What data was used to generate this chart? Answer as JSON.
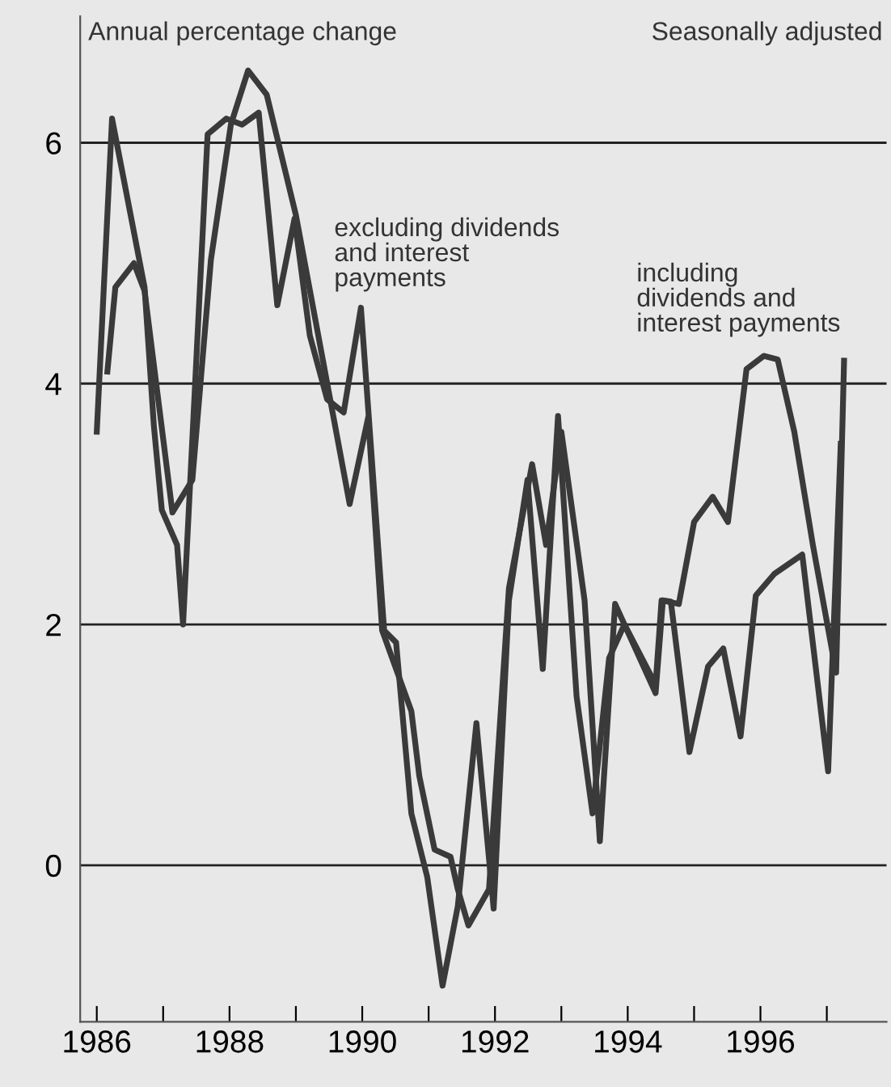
{
  "chart_data": {
    "type": "line",
    "ylabel": "Annual percentage change",
    "subtitle": "Seasonally adjusted",
    "xlim": [
      1985.75,
      1997.9
    ],
    "ylim": [
      -1.3,
      7.05
    ],
    "xticks": [
      1986,
      {
        "value": 1987,
        "label": null
      },
      1988,
      {
        "value": 1989,
        "label": null
      },
      1990,
      {
        "value": 1991,
        "label": null
      },
      1992,
      {
        "value": 1993,
        "label": null
      },
      1994,
      {
        "value": 1995,
        "label": null
      },
      1996,
      {
        "value": 1997,
        "label": null
      }
    ],
    "yticks": [
      0,
      2,
      4,
      6
    ],
    "grid": "y",
    "legend": false,
    "line_style": "solid",
    "marker": "none",
    "series": [
      {
        "name": "excluding dividends\nand interest\npayments",
        "color": "#3a3a3a",
        "x": [
          1986.0,
          1986.23,
          1986.72,
          1986.86,
          1986.98,
          1987.21,
          1987.3,
          1987.67,
          1987.95,
          1988.19,
          1988.44,
          1988.72,
          1988.98,
          1989.21,
          1989.47,
          1989.72,
          1989.98,
          1990.33,
          1990.51,
          1990.74,
          1990.98,
          1991.21,
          1991.44,
          1991.72,
          1991.98,
          1992.21,
          1992.49,
          1992.72,
          1992.95,
          1993.23,
          1993.47,
          1993.72,
          1993.95,
          1994.42,
          1994.53,
          1994.65,
          1994.93,
          1995.21,
          1995.44,
          1995.7,
          1995.93,
          1996.21,
          1996.63,
          1997.02,
          1997.21
        ],
        "values": [
          3.6,
          6.2,
          4.8,
          3.65,
          2.95,
          2.66,
          2.0,
          6.07,
          6.2,
          6.15,
          6.25,
          4.65,
          5.37,
          4.4,
          3.87,
          3.76,
          4.63,
          1.95,
          1.85,
          0.43,
          -0.1,
          -1.0,
          -0.34,
          1.18,
          -0.36,
          2.2,
          3.2,
          1.63,
          3.73,
          1.4,
          0.43,
          1.72,
          2.0,
          1.43,
          2.2,
          2.19,
          0.94,
          1.65,
          1.8,
          1.07,
          2.24,
          2.42,
          2.58,
          0.78,
          3.5
        ]
      },
      {
        "name": "including\ndividends and\ninterest payments",
        "color": "#3a3a3a",
        "x": [
          1986.16,
          1986.28,
          1986.56,
          1986.72,
          1987.14,
          1987.44,
          1987.72,
          1988.02,
          1988.28,
          1988.56,
          1989.0,
          1989.81,
          1990.09,
          1990.3,
          1990.74,
          1990.86,
          1991.09,
          1991.33,
          1991.44,
          1991.6,
          1991.91,
          1992.21,
          1992.56,
          1992.77,
          1993.0,
          1993.35,
          1993.58,
          1993.81,
          1993.95,
          1994.42,
          1994.51,
          1994.77,
          1995.0,
          1995.28,
          1995.51,
          1995.79,
          1996.05,
          1996.26,
          1996.51,
          1996.79,
          1997.14,
          1997.26
        ],
        "values": [
          4.1,
          4.8,
          5.0,
          4.77,
          2.93,
          3.2,
          5.03,
          6.15,
          6.6,
          6.4,
          5.4,
          3.0,
          3.72,
          1.95,
          1.28,
          0.74,
          0.13,
          0.07,
          -0.2,
          -0.5,
          -0.2,
          2.3,
          3.33,
          2.66,
          3.6,
          2.2,
          0.2,
          2.17,
          2.0,
          1.5,
          2.2,
          2.17,
          2.85,
          3.06,
          2.85,
          4.12,
          4.23,
          4.2,
          3.6,
          2.66,
          1.6,
          4.19
        ]
      }
    ]
  }
}
